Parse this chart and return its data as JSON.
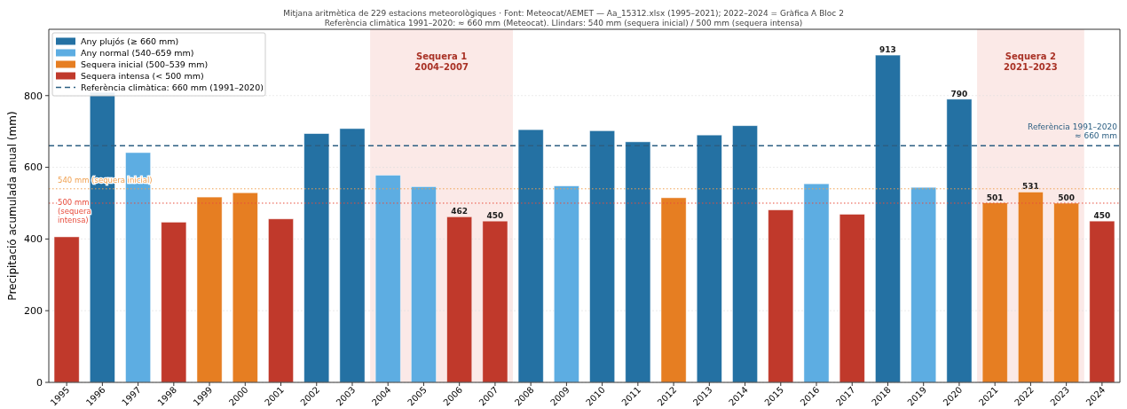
{
  "chart_data": {
    "type": "bar",
    "title": "Mitjana aritmètica de 229 estacions meteorològiques · Font: Meteocat/AEMET — Aa_15312.xlsx (1995–2021); 2022–2024 = Gràfica A Bloc 2",
    "subtitle": "Referència climàtica 1991–2020: ≈ 660 mm (Meteocat). Llindars: 540 mm (sequera inicial) / 500 mm (sequera intensa)",
    "ylabel": "Precipitació acumulada anual (mm)",
    "categories": [
      "1995",
      "1996",
      "1997",
      "1998",
      "1999",
      "2000",
      "2001",
      "2002",
      "2003",
      "2004",
      "2005",
      "2006",
      "2007",
      "2008",
      "2009",
      "2010",
      "2011",
      "2012",
      "2013",
      "2014",
      "2015",
      "2016",
      "2017",
      "2018",
      "2019",
      "2020",
      "2021",
      "2022",
      "2023",
      "2024"
    ],
    "series": [
      {
        "name": "Any plujós (≥ 660 mm)",
        "color": "#2471a3",
        "values": [
          null,
          809,
          null,
          null,
          null,
          null,
          null,
          694,
          708,
          null,
          null,
          null,
          null,
          705,
          null,
          702,
          671,
          null,
          690,
          716,
          null,
          null,
          null,
          913,
          null,
          790,
          null,
          null,
          null,
          null
        ],
        "value_labels": [
          null,
          null,
          null,
          null,
          null,
          null,
          null,
          null,
          null,
          null,
          null,
          null,
          null,
          null,
          null,
          null,
          null,
          null,
          null,
          null,
          null,
          null,
          null,
          "913",
          null,
          "790",
          null,
          null,
          null,
          null
        ]
      },
      {
        "name": "Any normal (540–659 mm)",
        "color": "#5dade2",
        "values": [
          null,
          null,
          641,
          null,
          null,
          null,
          null,
          null,
          null,
          578,
          546,
          null,
          null,
          null,
          548,
          null,
          null,
          null,
          null,
          null,
          null,
          554,
          null,
          null,
          544,
          null,
          null,
          null,
          null,
          null
        ]
      },
      {
        "name": "Sequera inicial (500–539 mm)",
        "color": "#e67e22",
        "values": [
          null,
          null,
          null,
          null,
          517,
          529,
          null,
          null,
          null,
          null,
          null,
          null,
          null,
          null,
          null,
          null,
          null,
          515,
          null,
          null,
          null,
          null,
          null,
          null,
          null,
          null,
          501,
          531,
          500,
          null
        ],
        "value_labels": [
          null,
          null,
          null,
          null,
          null,
          null,
          null,
          null,
          null,
          null,
          null,
          null,
          null,
          null,
          null,
          null,
          null,
          null,
          null,
          null,
          null,
          null,
          null,
          null,
          null,
          null,
          "501",
          "531",
          "500",
          null
        ]
      },
      {
        "name": "Sequera intensa (< 500 mm)",
        "color": "#c0392b",
        "values": [
          406,
          null,
          null,
          447,
          null,
          null,
          456,
          null,
          null,
          null,
          null,
          462,
          450,
          null,
          null,
          null,
          null,
          null,
          null,
          null,
          481,
          null,
          469,
          null,
          null,
          null,
          null,
          null,
          null,
          450
        ],
        "value_labels": [
          null,
          null,
          null,
          null,
          null,
          null,
          null,
          null,
          null,
          null,
          null,
          "462",
          "450",
          null,
          null,
          null,
          null,
          null,
          null,
          null,
          null,
          null,
          null,
          null,
          null,
          null,
          null,
          null,
          null,
          "450"
        ]
      }
    ],
    "ylim": [
      0,
      985
    ],
    "yticks": [
      0,
      200,
      400,
      600,
      800
    ],
    "grid": "y",
    "legend": "top left",
    "ref_lines": [
      {
        "axis": "y",
        "value": 660,
        "label": "Referència climàtica: 660 mm (1991–2020)",
        "color": "#2c5f82",
        "line_style": "dashed"
      },
      {
        "axis": "y",
        "value": 540,
        "label": "540 mm (sequera inicial)",
        "color": "#f0a050",
        "line_style": "dotted"
      },
      {
        "axis": "y",
        "value": 500,
        "label": "500 mm\n(sequera\nintensa)",
        "color": "#e74c3c",
        "line_style": "dotted"
      }
    ],
    "bands": [
      {
        "axis": "x",
        "from": "2004",
        "to": "2007",
        "label": "Sequera 1\n2004–2007",
        "color": "#fbe9e7"
      },
      {
        "axis": "x",
        "from": "2021",
        "to": "2023",
        "label": "Sequera 2\n2021–2023",
        "color": "#fbe9e7"
      }
    ],
    "annotations": [
      {
        "text": "Referència 1991–2020\n≈ 660 mm",
        "y": 660
      }
    ]
  }
}
